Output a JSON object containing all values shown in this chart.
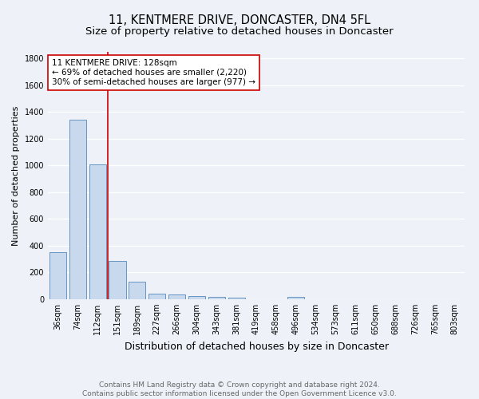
{
  "title": "11, KENTMERE DRIVE, DONCASTER, DN4 5FL",
  "subtitle": "Size of property relative to detached houses in Doncaster",
  "xlabel": "Distribution of detached houses by size in Doncaster",
  "ylabel": "Number of detached properties",
  "categories": [
    "36sqm",
    "74sqm",
    "112sqm",
    "151sqm",
    "189sqm",
    "227sqm",
    "266sqm",
    "304sqm",
    "343sqm",
    "381sqm",
    "419sqm",
    "458sqm",
    "496sqm",
    "534sqm",
    "573sqm",
    "611sqm",
    "650sqm",
    "688sqm",
    "726sqm",
    "765sqm",
    "803sqm"
  ],
  "values": [
    355,
    1340,
    1010,
    285,
    130,
    42,
    38,
    22,
    16,
    13,
    0,
    0,
    17,
    0,
    0,
    0,
    0,
    0,
    0,
    0,
    0
  ],
  "bar_color": "#c9d9ed",
  "bar_edge_color": "#5588bb",
  "property_line_color": "#cc0000",
  "annotation_text": "11 KENTMERE DRIVE: 128sqm\n← 69% of detached houses are smaller (2,220)\n30% of semi-detached houses are larger (977) →",
  "annotation_box_color": "#ffffff",
  "annotation_box_edge": "#cc0000",
  "background_color": "#eef2f8",
  "grid_color": "#ffffff",
  "ylim": [
    0,
    1850
  ],
  "yticks": [
    0,
    200,
    400,
    600,
    800,
    1000,
    1200,
    1400,
    1600,
    1800
  ],
  "footer_line1": "Contains HM Land Registry data © Crown copyright and database right 2024.",
  "footer_line2": "Contains public sector information licensed under the Open Government Licence v3.0.",
  "title_fontsize": 10.5,
  "subtitle_fontsize": 9.5,
  "xlabel_fontsize": 9,
  "ylabel_fontsize": 8,
  "tick_fontsize": 7,
  "footer_fontsize": 6.5,
  "annot_fontsize": 7.5
}
